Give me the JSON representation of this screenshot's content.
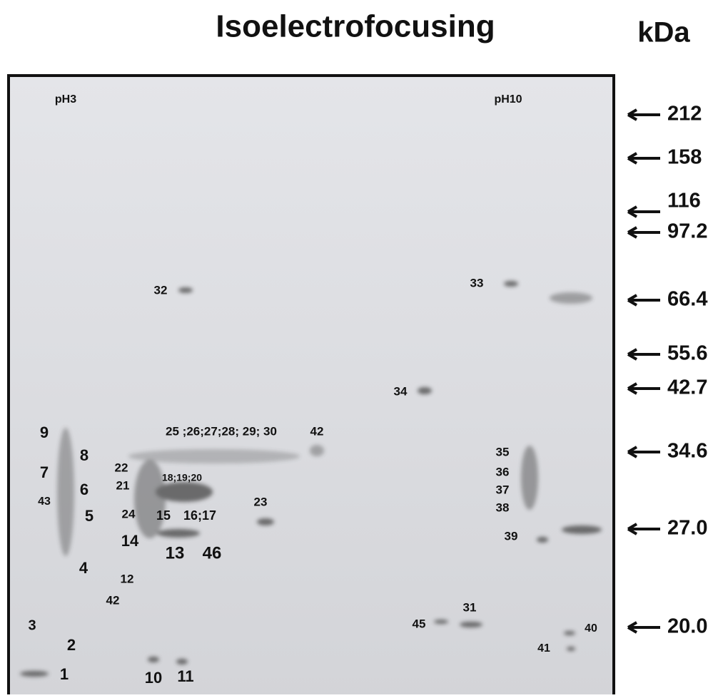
{
  "title": "Isoelectrofocusing",
  "unit": "kDa",
  "gel": {
    "left_label": "pH3",
    "right_label": "pH10"
  },
  "markers": [
    "212",
    "158",
    "116",
    "97.2",
    "66.4",
    "55.6",
    "42.7",
    "34.6",
    "27.0",
    "20.0"
  ],
  "spots": [
    "9",
    "8",
    "7",
    "6",
    "43",
    "5",
    "4",
    "3",
    "2",
    "1",
    "10",
    "11",
    "42",
    "12",
    "14",
    "13",
    "46",
    "15",
    "16;17",
    "24",
    "22",
    "21",
    "18;19;20",
    "25 ;26;27;28; 29; 30",
    "42",
    "23",
    "32",
    "33",
    "34",
    "35",
    "36",
    "37",
    "38",
    "39",
    "31",
    "45",
    "40",
    "41"
  ]
}
